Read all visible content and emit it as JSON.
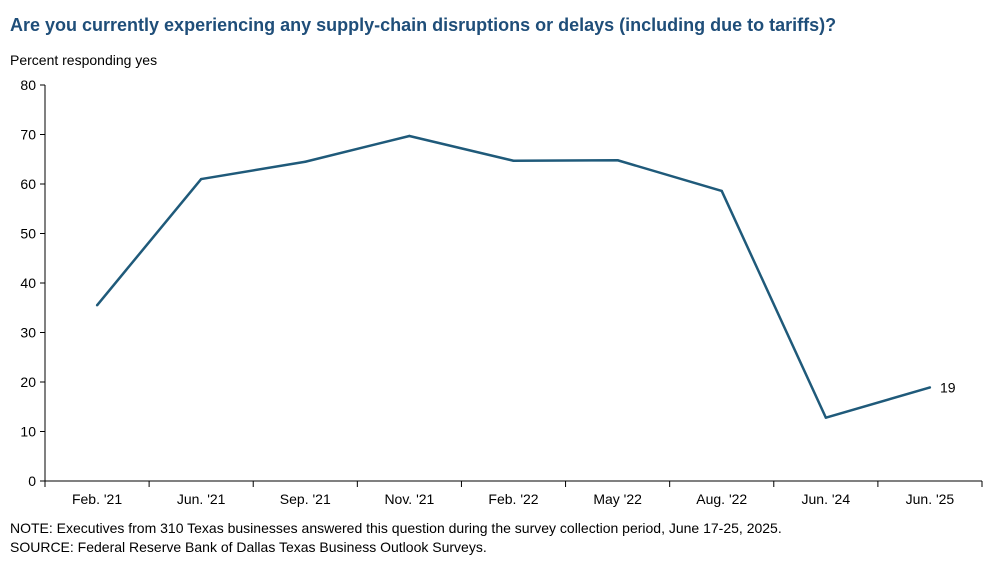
{
  "chart_data": {
    "type": "line",
    "title": "Are you currently experiencing any supply-chain disruptions or delays (including due to tariffs)?",
    "ylabel": "Percent responding yes",
    "categories": [
      "Feb. '21",
      "Jun. '21",
      "Sep. '21",
      "Nov. '21",
      "Feb. '22",
      "May '22",
      "Aug. '22",
      "Jun. '24",
      "Jun. '25"
    ],
    "series": [
      {
        "values": [
          35.5,
          61,
          64.5,
          69.7,
          64.7,
          64.8,
          58.6,
          12.8,
          18.9
        ]
      }
    ],
    "ylim": [
      0,
      80
    ],
    "yticks": [
      0,
      10,
      20,
      30,
      40,
      50,
      60,
      70,
      80
    ],
    "end_label": "19",
    "line_color": "#1f5a7a",
    "grid": false
  },
  "footer": {
    "note": "NOTE: Executives from 310 Texas businesses answered this question during the survey collection period, June 17-25, 2025.",
    "source": "SOURCE: Federal Reserve Bank of Dallas Texas Business Outlook Surveys."
  }
}
